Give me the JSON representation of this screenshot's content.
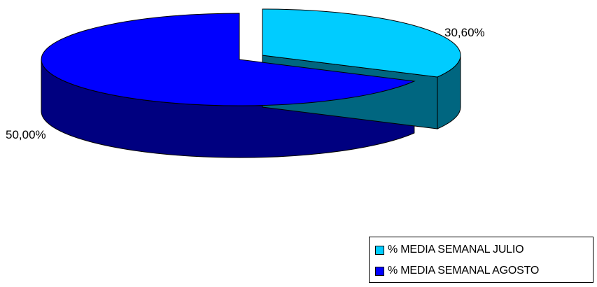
{
  "chart_data": {
    "type": "pie",
    "style": "3d-exploded",
    "series": [
      {
        "name": "% MEDIA SEMANAL JULIO",
        "value": 30.6,
        "label": "30,60%",
        "color": "#00ccff",
        "side_color": "#006680"
      },
      {
        "name": "% MEDIA SEMANAL AGOSTO",
        "value": 50.0,
        "label": "50,00%",
        "color": "#0000ff",
        "side_color": "#000080"
      }
    ],
    "legend_position": "bottom-right"
  }
}
